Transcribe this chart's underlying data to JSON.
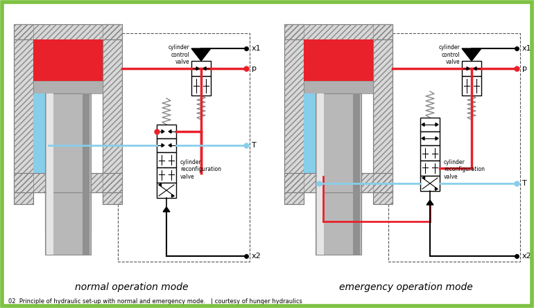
{
  "bg_color": "#ffffff",
  "border_color": "#7dc242",
  "red": "#e8212a",
  "blue": "#87ceeb",
  "black": "#000000",
  "gray_hatch": "#aaaaaa",
  "gray_fill": "#cccccc",
  "spring_color": "#888888",
  "white": "#ffffff",
  "title_left": "normal operation mode",
  "title_right": "emergency operation mode",
  "footer": "02  Principle of hydraulic set-up with normal and emergency mode.   | courtesy of hunger hydraulics",
  "lbl_ccv": "cylinder\ncontrol\nvalve",
  "lbl_crv": "cylinder\nreconfiguration\nvalve"
}
